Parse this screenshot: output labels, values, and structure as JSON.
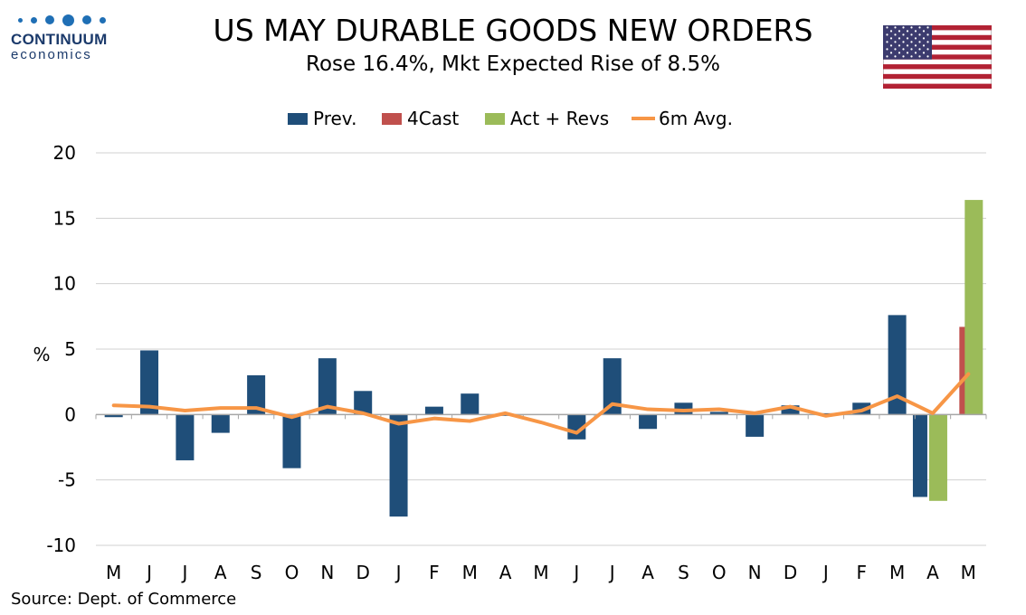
{
  "logo": {
    "name": "CONTINUUM",
    "sub": "economics"
  },
  "title": "US MAY DURABLE GOODS NEW ORDERS",
  "subtitle": "Rose 16.4%, Mkt Expected Rise of 8.5%",
  "source": "Source: Dept. of Commerce",
  "colors": {
    "prev": "#1f4e79",
    "fcast": "#c0504d",
    "act": "#9bbb59",
    "avg": "#f79646"
  },
  "chart_data": {
    "type": "bar",
    "title": "US MAY DURABLE GOODS NEW ORDERS",
    "subtitle": "Rose 16.4%, Mkt Expected Rise of 8.5%",
    "xlabel": "",
    "ylabel": "%",
    "ylim": [
      -10,
      20
    ],
    "yticks": [
      -10,
      -5,
      0,
      5,
      10,
      15,
      20
    ],
    "grid": true,
    "legend_position": "top",
    "categories": [
      "M",
      "J",
      "J",
      "A",
      "S",
      "O",
      "N",
      "D",
      "J",
      "F",
      "M",
      "A",
      "M",
      "J",
      "J",
      "A",
      "S",
      "O",
      "N",
      "D",
      "J",
      "F",
      "M",
      "A",
      "M"
    ],
    "series": [
      {
        "name": "Prev.",
        "kind": "bar",
        "values": [
          -0.2,
          4.9,
          -3.5,
          -1.4,
          3.0,
          -4.1,
          4.3,
          1.8,
          -7.8,
          0.6,
          1.6,
          -0.1,
          0.0,
          -1.9,
          4.3,
          -1.1,
          0.9,
          0.2,
          -1.7,
          0.7,
          0.1,
          0.9,
          7.6,
          -6.3,
          null
        ]
      },
      {
        "name": "4Cast",
        "kind": "bar",
        "values": [
          null,
          null,
          null,
          null,
          null,
          null,
          null,
          null,
          null,
          null,
          null,
          null,
          null,
          null,
          null,
          null,
          null,
          null,
          null,
          null,
          null,
          null,
          null,
          null,
          6.7
        ]
      },
      {
        "name": "Act + Revs",
        "kind": "bar",
        "values": [
          null,
          null,
          null,
          null,
          null,
          null,
          null,
          null,
          null,
          null,
          null,
          null,
          null,
          null,
          null,
          null,
          null,
          null,
          null,
          null,
          null,
          null,
          null,
          -6.6,
          16.4
        ]
      },
      {
        "name": "6m Avg.",
        "kind": "line",
        "values": [
          0.7,
          0.6,
          0.3,
          0.5,
          0.5,
          -0.2,
          0.6,
          0.1,
          -0.7,
          -0.3,
          -0.5,
          0.1,
          -0.6,
          -1.4,
          0.8,
          0.4,
          0.3,
          0.4,
          0.1,
          0.6,
          -0.1,
          0.3,
          1.4,
          0.1,
          3.1
        ]
      }
    ]
  }
}
